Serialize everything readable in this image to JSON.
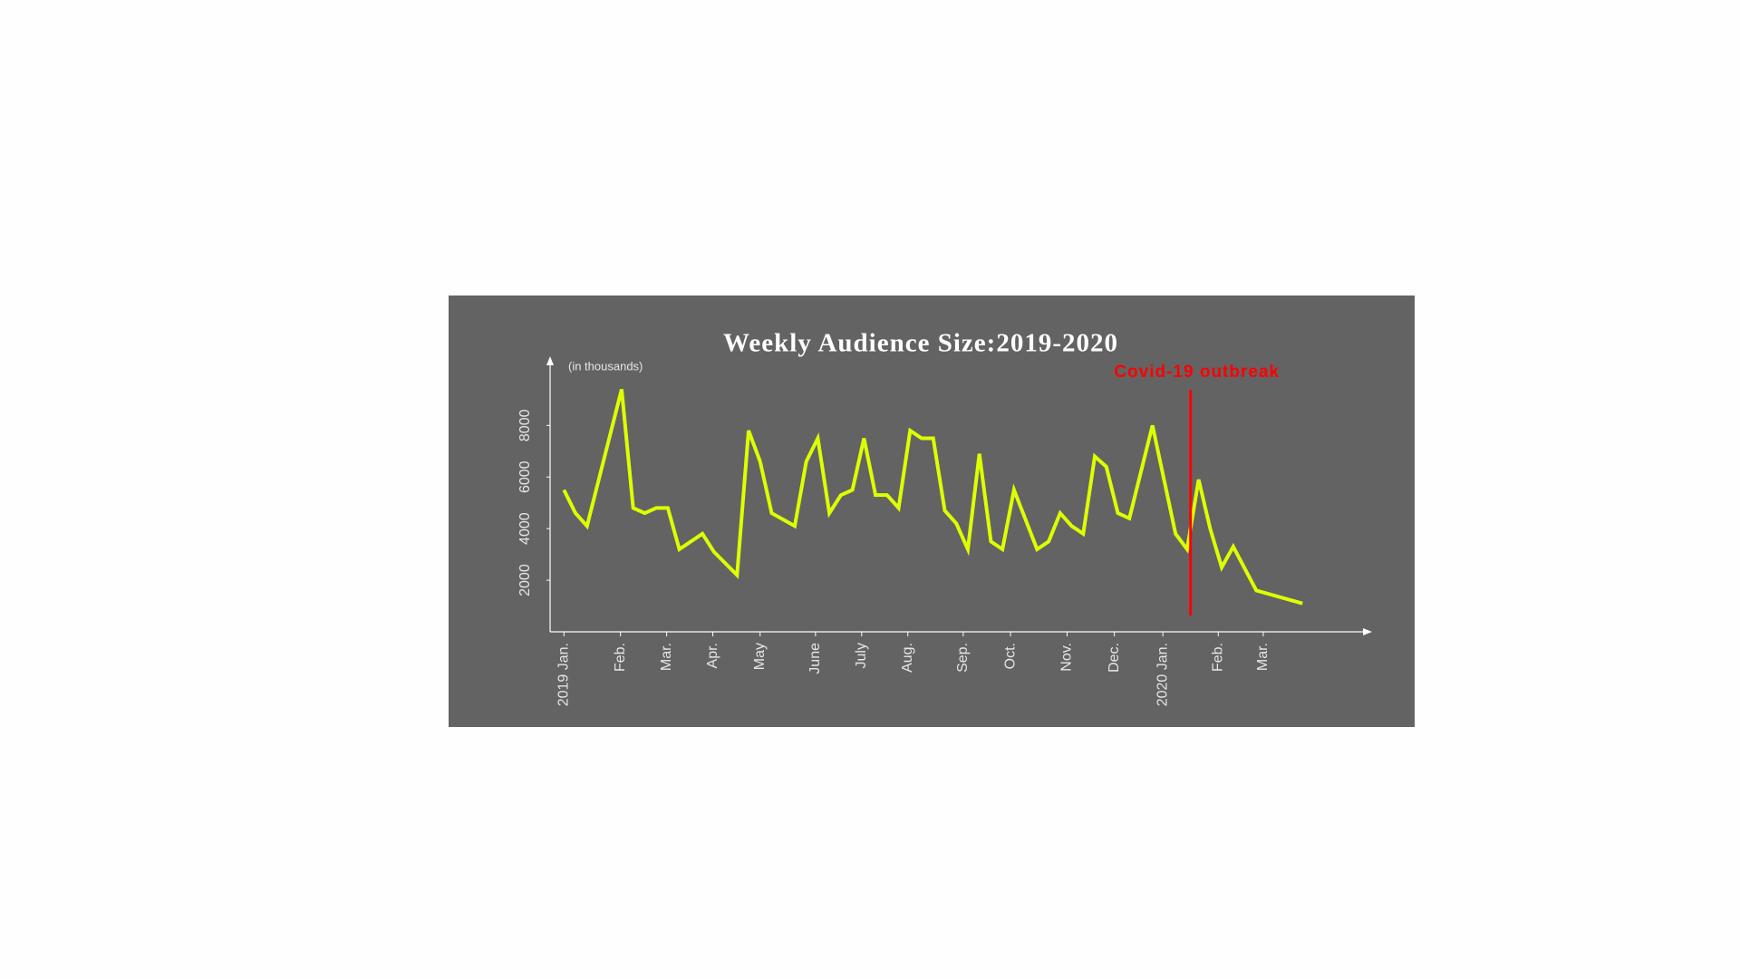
{
  "chart_data": {
    "type": "line",
    "title": "Weekly Audience Size:2019-2020",
    "y_unit_label": "(in thousands)",
    "x": [
      0,
      1,
      2,
      5,
      6,
      7,
      8,
      9,
      10,
      12,
      13,
      15,
      16,
      17,
      18,
      20,
      21,
      22,
      23,
      24,
      25,
      26,
      27,
      28,
      29,
      30,
      31,
      32,
      33,
      34,
      35,
      36,
      37,
      38,
      39,
      41,
      42,
      43,
      44,
      45,
      46,
      47,
      48,
      49,
      51,
      53,
      54,
      55,
      56,
      57,
      58,
      60,
      64
    ],
    "series": [
      {
        "name": "Weekly audience",
        "color": "#ddff00",
        "values": [
          5500,
          4600,
          4100,
          9400,
          4800,
          4600,
          4800,
          4800,
          3200,
          3800,
          3100,
          2200,
          7800,
          6600,
          4600,
          4100,
          6600,
          7500,
          4600,
          5300,
          5500,
          7500,
          5300,
          5300,
          4800,
          7800,
          7500,
          7500,
          4700,
          4200,
          3200,
          6900,
          3500,
          3200,
          5500,
          3200,
          3500,
          4600,
          4100,
          3800,
          6800,
          6400,
          4600,
          4400,
          8000,
          3800,
          3200,
          5900,
          4000,
          2500,
          3300,
          1600,
          1100
        ]
      }
    ],
    "xlim": [
      -1.2,
      69.4
    ],
    "ylim": [
      0,
      10400
    ],
    "yticks": [
      2000,
      4000,
      6000,
      8000
    ],
    "xticks": [
      {
        "value": 0,
        "label": "2019 Jan."
      },
      {
        "value": 4.9,
        "label": "Feb."
      },
      {
        "value": 8.9,
        "label": "Mar."
      },
      {
        "value": 12.9,
        "label": "Apr."
      },
      {
        "value": 17.0,
        "label": "May"
      },
      {
        "value": 21.8,
        "label": "June"
      },
      {
        "value": 25.8,
        "label": "July"
      },
      {
        "value": 29.8,
        "label": "Aug."
      },
      {
        "value": 34.6,
        "label": "Sep."
      },
      {
        "value": 38.7,
        "label": "Oct."
      },
      {
        "value": 43.6,
        "label": "Nov."
      },
      {
        "value": 47.7,
        "label": "Dec."
      },
      {
        "value": 51.9,
        "label": "2020 Jan."
      },
      {
        "value": 56.7,
        "label": "Feb."
      },
      {
        "value": 60.6,
        "label": "Mar."
      }
    ],
    "annotation": {
      "text": "Covid-19 outbreak",
      "x": 54.3,
      "color": "#ff0000"
    },
    "background": "#636363",
    "axis_color": "#ffffff"
  }
}
